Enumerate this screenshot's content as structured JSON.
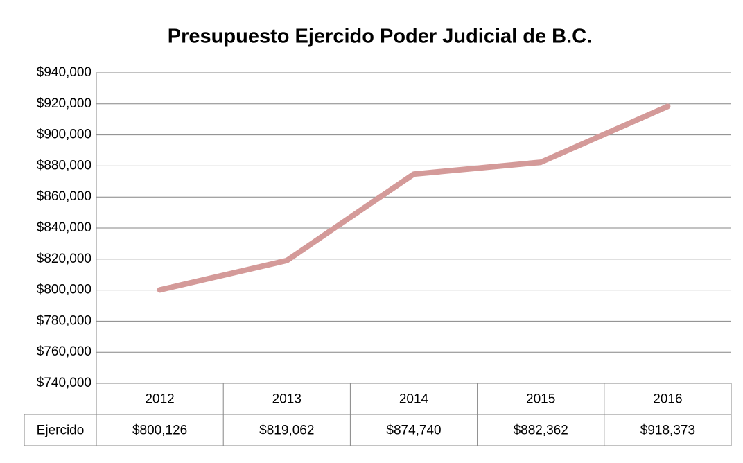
{
  "chart_data": {
    "type": "line",
    "title": "Presupuesto Ejercido Poder Judicial de B.C.",
    "categories": [
      "2012",
      "2013",
      "2014",
      "2015",
      "2016"
    ],
    "series": [
      {
        "name": "Ejercido",
        "color": "#d49a99",
        "values": [
          800126,
          819062,
          874740,
          882362,
          918373
        ],
        "value_labels": [
          "$800,126",
          "$819,062",
          "$874,740",
          "$882,362",
          "$918,373"
        ]
      }
    ],
    "ylim": [
      740000,
      940000
    ],
    "yticks": [
      {
        "value": 740000,
        "label": "$740,000"
      },
      {
        "value": 760000,
        "label": "$760,000"
      },
      {
        "value": 780000,
        "label": "$780,000"
      },
      {
        "value": 800000,
        "label": "$800,000"
      },
      {
        "value": 820000,
        "label": "$820,000"
      },
      {
        "value": 840000,
        "label": "$840,000"
      },
      {
        "value": 860000,
        "label": "$860,000"
      },
      {
        "value": 880000,
        "label": "$880,000"
      },
      {
        "value": 900000,
        "label": "$900,000"
      },
      {
        "value": 920000,
        "label": "$920,000"
      },
      {
        "value": 940000,
        "label": "$940,000"
      }
    ],
    "grid": true
  }
}
